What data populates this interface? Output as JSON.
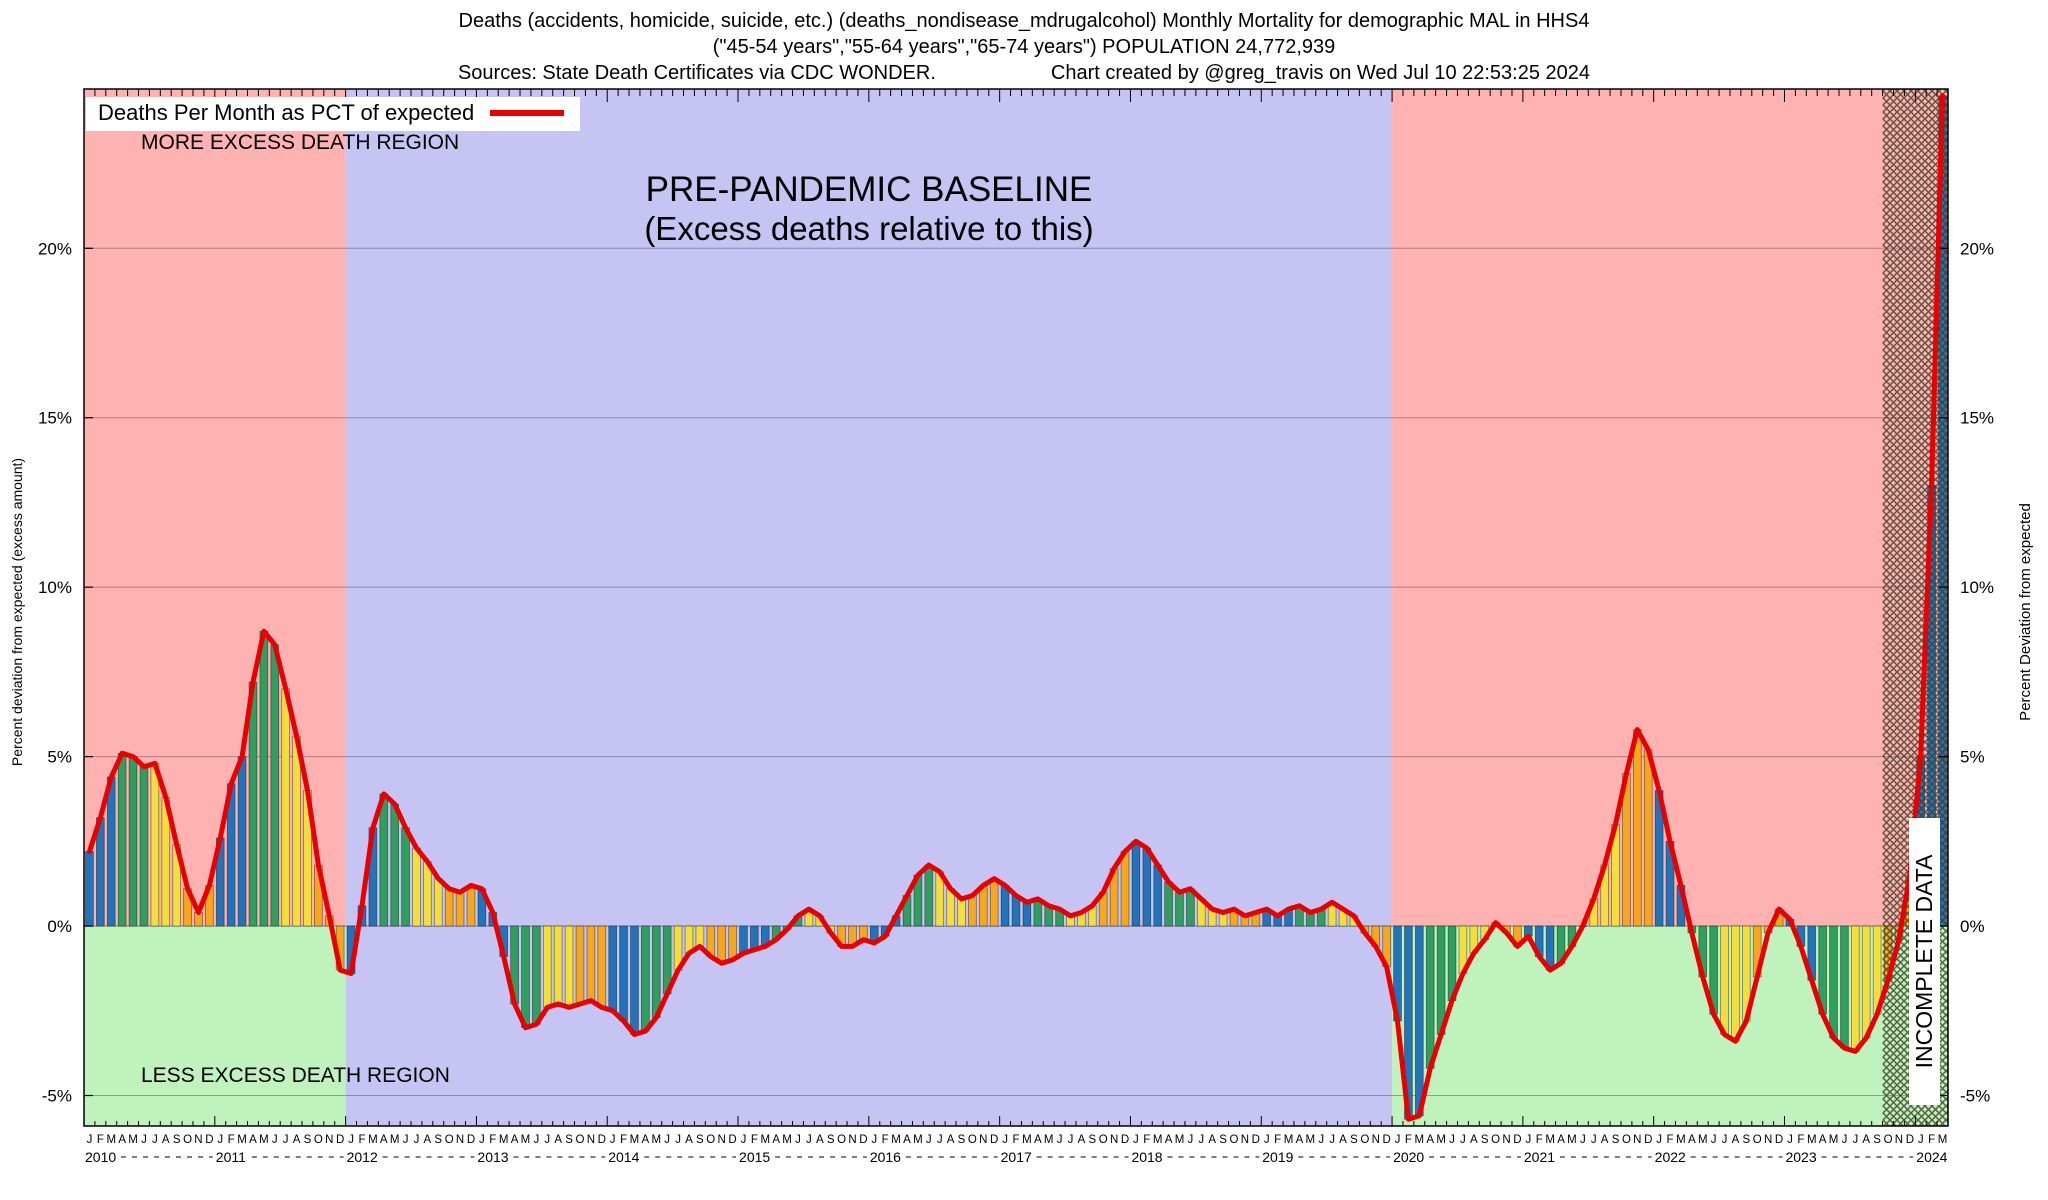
{
  "header": {
    "line1": "Deaths (accidents, homicide, suicide, etc.) (deaths_nondisease_mdrugalcohol) Monthly Mortality for demographic MAL in HHS4",
    "line2": "(\"45-54 years\",\"55-64 years\",\"65-74 years\") POPULATION 24,772,939",
    "line3_left": "Sources: State Death Certificates via CDC WONDER.",
    "line3_right": "Chart created by @greg_travis on Wed Jul 10 22:53:25 2024"
  },
  "legend": {
    "label": "Deaths Per Month as PCT of expected"
  },
  "annotations": {
    "more_excess": "MORE EXCESS DEATH REGION",
    "less_excess": "LESS EXCESS DEATH REGION",
    "baseline_title": "PRE-PANDEMIC BASELINE",
    "baseline_subtitle": "(Excess deaths relative to this)",
    "incomplete": "INCOMPLETE DATA"
  },
  "axes": {
    "left_label": "Percent deviation from expected (excess amount)",
    "right_label": "Percent Deviation from expected",
    "y_ticks": [
      -5,
      0,
      5,
      10,
      15,
      20
    ],
    "y_tick_labels": [
      "-5%",
      "0%",
      "5%",
      "10%",
      "15%",
      "20%"
    ],
    "month_letters": "JFMAMJJASOND",
    "years": [
      "2010",
      "2011",
      "2012",
      "2013",
      "2014",
      "2015",
      "2016",
      "2017",
      "2018",
      "2019",
      "2020",
      "2021",
      "2022",
      "2023",
      "2024"
    ]
  },
  "chart_data": {
    "type": "bar+line",
    "title": "Deaths (accidents, homicide, suicide, etc.) Monthly Mortality for demographic MAL in HHS4",
    "ylabel": "Percent deviation from expected (excess amount)",
    "x_start": "2010-01",
    "x_end": "2024-03",
    "x_monthly": true,
    "ylim": [
      -5.9,
      24.7
    ],
    "grid": "horizontal",
    "legend_position": "top-left",
    "baseline_region": {
      "from": "2012-01",
      "to": "2019-12",
      "label": "PRE-PANDEMIC BASELINE (Excess deaths relative to this)"
    },
    "incomplete_region": {
      "from": "2023-10",
      "to": "2024-03",
      "label": "INCOMPLETE DATA"
    },
    "series": [
      {
        "name": "Deaths Per Month as PCT of expected",
        "unit": "%",
        "values": [
          2.2,
          3.2,
          4.4,
          5.1,
          5.0,
          4.7,
          4.8,
          3.8,
          2.4,
          1.1,
          0.4,
          1.2,
          2.6,
          4.2,
          5.0,
          7.2,
          8.7,
          8.3,
          7.0,
          5.6,
          4.0,
          1.8,
          0.3,
          -1.3,
          -1.4,
          0.6,
          2.9,
          3.9,
          3.6,
          2.9,
          2.3,
          1.9,
          1.4,
          1.1,
          1.0,
          1.2,
          1.1,
          0.4,
          -0.9,
          -2.3,
          -3.0,
          -2.9,
          -2.4,
          -2.3,
          -2.4,
          -2.3,
          -2.2,
          -2.4,
          -2.5,
          -2.8,
          -3.2,
          -3.1,
          -2.7,
          -2.0,
          -1.3,
          -0.8,
          -0.6,
          -0.9,
          -1.1,
          -1.0,
          -0.8,
          -0.7,
          -0.6,
          -0.4,
          -0.1,
          0.3,
          0.5,
          0.3,
          -0.2,
          -0.6,
          -0.6,
          -0.4,
          -0.5,
          -0.3,
          0.3,
          0.9,
          1.5,
          1.8,
          1.6,
          1.1,
          0.8,
          0.9,
          1.2,
          1.4,
          1.2,
          0.9,
          0.7,
          0.8,
          0.6,
          0.5,
          0.3,
          0.4,
          0.6,
          1.0,
          1.7,
          2.2,
          2.5,
          2.3,
          1.8,
          1.3,
          1.0,
          1.1,
          0.8,
          0.5,
          0.4,
          0.5,
          0.3,
          0.4,
          0.5,
          0.3,
          0.5,
          0.6,
          0.4,
          0.5,
          0.7,
          0.5,
          0.3,
          -0.2,
          -0.6,
          -1.2,
          -2.8,
          -5.7,
          -5.6,
          -4.2,
          -3.2,
          -2.2,
          -1.4,
          -0.8,
          -0.4,
          0.1,
          -0.2,
          -0.6,
          -0.3,
          -0.9,
          -1.3,
          -1.1,
          -0.6,
          0.0,
          0.8,
          1.8,
          3.0,
          4.5,
          5.8,
          5.2,
          4.0,
          2.5,
          1.2,
          -0.2,
          -1.5,
          -2.6,
          -3.2,
          -3.4,
          -2.8,
          -1.5,
          -0.2,
          0.5,
          0.2,
          -0.6,
          -1.6,
          -2.6,
          -3.3,
          -3.6,
          -3.7,
          -3.3,
          -2.6,
          -1.6,
          -0.4,
          1.5,
          5.0,
          13.0,
          24.5
        ]
      }
    ],
    "bar_color_rule": "quarter of year: Q1 blue, Q2 green, Q3 yellow, Q4 orange",
    "colors": {
      "line": "#e80000",
      "q1_bar": "#2273b8",
      "q2_bar": "#2f9e5e",
      "q3_bar": "#f2de3c",
      "q4_bar": "#f4a71f",
      "excess_bg": "#ffb2b2",
      "less_bg": "#bff2bd",
      "baseline_bg": "#c6c4f2",
      "hatch": "#3b3b24"
    }
  }
}
